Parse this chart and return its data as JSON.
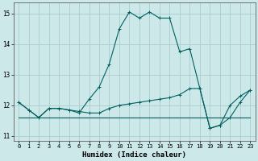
{
  "xlabel": "Humidex (Indice chaleur)",
  "background_color": "#cce8e8",
  "grid_color": "#aacccc",
  "line_color": "#006060",
  "xlim": [
    -0.5,
    23.5
  ],
  "ylim": [
    10.85,
    15.35
  ],
  "yticks": [
    11,
    12,
    13,
    14,
    15
  ],
  "xticks": [
    0,
    1,
    2,
    3,
    4,
    5,
    6,
    7,
    8,
    9,
    10,
    11,
    12,
    13,
    14,
    15,
    16,
    17,
    18,
    19,
    20,
    21,
    22,
    23
  ],
  "x_all": [
    0,
    1,
    2,
    3,
    4,
    5,
    6,
    7,
    8,
    9,
    10,
    11,
    12,
    13,
    14,
    15,
    16,
    17,
    18,
    19,
    20,
    21,
    22,
    23
  ],
  "y_peak": [
    12.1,
    11.85,
    11.6,
    11.9,
    11.9,
    11.85,
    11.75,
    12.2,
    12.6,
    13.35,
    14.5,
    15.05,
    14.85,
    15.05,
    14.85,
    14.85,
    13.75,
    13.85,
    12.55,
    11.25,
    11.35,
    12.0,
    12.3,
    12.5
  ],
  "y_mid": [
    12.1,
    11.85,
    11.6,
    11.9,
    11.9,
    11.85,
    11.8,
    11.75,
    11.75,
    11.9,
    12.0,
    12.05,
    12.1,
    12.15,
    12.2,
    12.25,
    12.35,
    12.55,
    12.55,
    11.25,
    11.35,
    11.6,
    12.1,
    12.5
  ],
  "y_flat": [
    11.6,
    11.6,
    11.6,
    11.6,
    11.6,
    11.6,
    11.6,
    11.6,
    11.6,
    11.6,
    11.6,
    11.6,
    11.6,
    11.6,
    11.6,
    11.6,
    11.6,
    11.6,
    11.6,
    11.6,
    11.6,
    11.6,
    11.6,
    11.6
  ]
}
